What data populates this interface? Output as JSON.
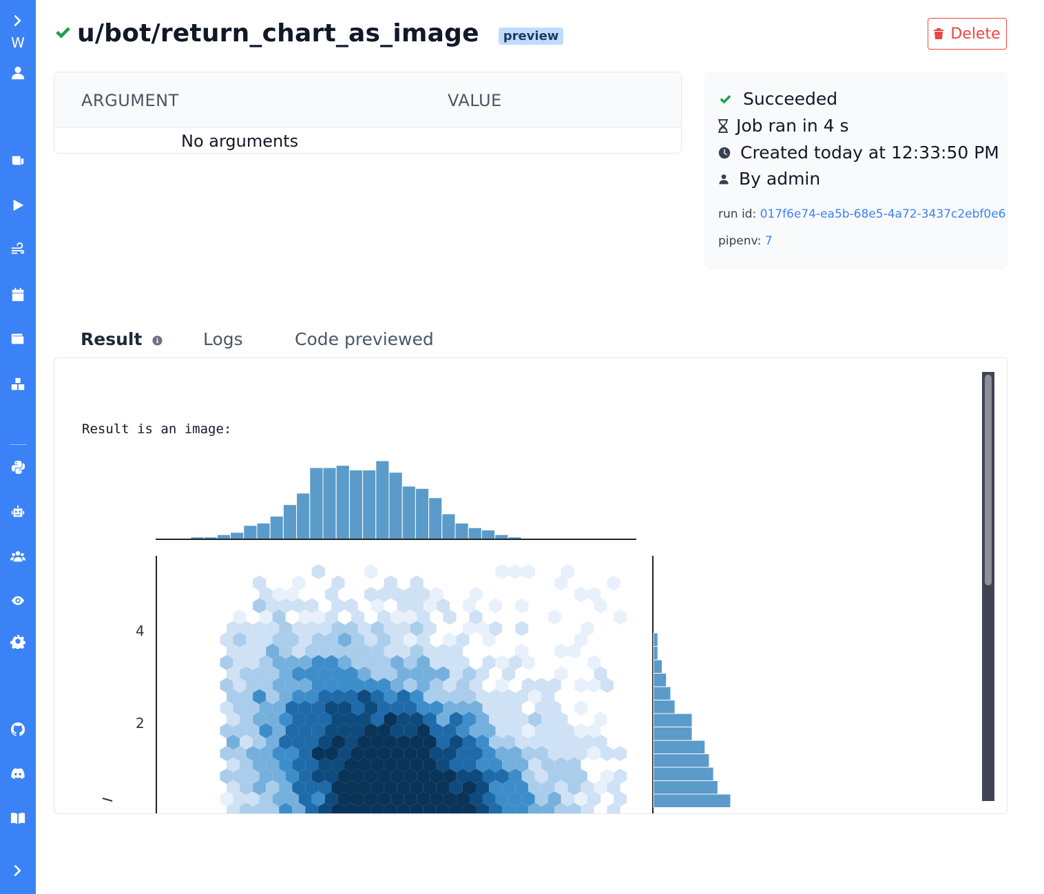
{
  "sidebar": {
    "logo_letter": "W",
    "items": [
      {
        "name": "expand-icon"
      },
      {
        "name": "user-icon"
      },
      {
        "name": "scripts-icon"
      },
      {
        "name": "runs-icon"
      },
      {
        "name": "flows-icon"
      },
      {
        "name": "schedule-icon"
      },
      {
        "name": "resources-icon"
      },
      {
        "name": "apps-icon"
      },
      {
        "name": "python-icon"
      },
      {
        "name": "robot-icon"
      },
      {
        "name": "groups-icon"
      },
      {
        "name": "eye-icon"
      },
      {
        "name": "settings-icon"
      },
      {
        "name": "github-icon"
      },
      {
        "name": "discord-icon"
      },
      {
        "name": "docs-icon"
      },
      {
        "name": "collapse-icon"
      }
    ]
  },
  "header": {
    "title": "u/bot/return_chart_as_image",
    "badge": "preview",
    "delete_label": "Delete"
  },
  "arguments": {
    "col_argument": "ARGUMENT",
    "col_value": "VALUE",
    "empty_text": "No arguments"
  },
  "job_info": {
    "status": "Succeeded",
    "duration": "Job ran in 4 s",
    "created": "Created today at 12:33:50 PM",
    "by": "By admin",
    "run_id_label": "run id:",
    "run_id": "017f6e74-ea5b-68e5-4a72-3437c2ebf0e6",
    "pipenv_label": "pipenv:",
    "pipenv": "7",
    "colors": {
      "success": "#16a34a",
      "link": "#3b82f6"
    }
  },
  "tabs": [
    {
      "label": "Result",
      "active": true
    },
    {
      "label": "Logs",
      "active": false
    },
    {
      "label": "Code previewed",
      "active": false
    }
  ],
  "result": {
    "text": "Result is an image:"
  },
  "chart_data": {
    "type": "hexbin-jointplot",
    "y_ticks": [
      "4",
      "2"
    ],
    "top_histogram": [
      1,
      1,
      2,
      3,
      6,
      7,
      10,
      15,
      20,
      31,
      31,
      32,
      30,
      30,
      34,
      29,
      23,
      22,
      18,
      11,
      7,
      5,
      4,
      2,
      1
    ],
    "right_histogram": [
      1,
      1,
      2,
      3,
      4,
      5,
      9,
      9,
      12,
      13,
      14,
      15,
      18
    ]
  }
}
